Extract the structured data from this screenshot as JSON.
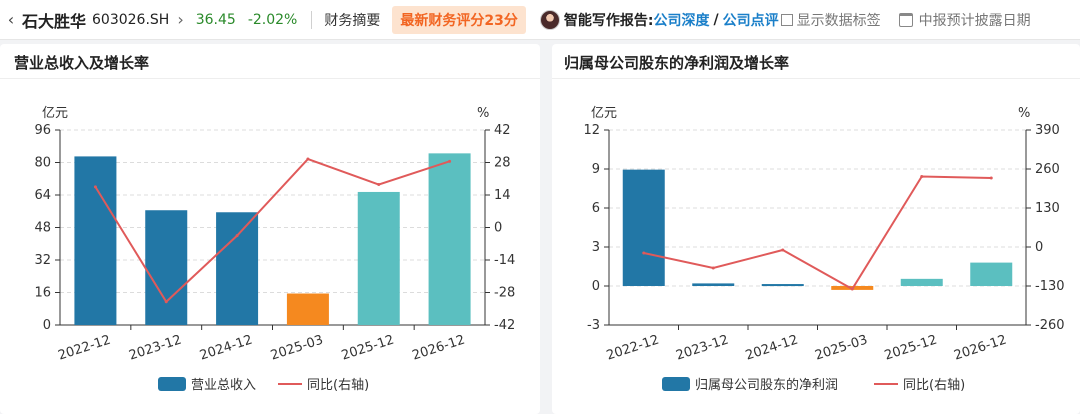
{
  "header": {
    "stock_name": "石大胜华",
    "stock_code": "603026.SH",
    "price": "36.45",
    "change_pct": "-2.02%",
    "tab_summary": "财务摘要",
    "score_badge": "最新财务评分23分",
    "report_label": "智能写作报告:",
    "report_link_1": "公司深度",
    "report_sep": "/",
    "report_link_2": "公司点评",
    "show_data_labels": "显示数据标签",
    "calendar_label": "中报预计披露日期",
    "price_color": "#2a8a2a",
    "badge_color": "#f26522",
    "link_color": "#1a7fc9"
  },
  "charts": {
    "revenue_title": "营业总收入及增长率",
    "profit_title": "归属母公司股东的净利润及增长率"
  },
  "chart_data": [
    {
      "type": "bar",
      "title": "营业总收入及增长率",
      "categories": [
        "2022-12",
        "2023-12",
        "2024-12",
        "2025-03",
        "2025-12",
        "2026-12"
      ],
      "y_unit": "亿元",
      "y2_unit": "%",
      "ylim": [
        0,
        96
      ],
      "yticks": [
        0,
        16,
        32,
        48,
        64,
        80,
        96
      ],
      "y2lim": [
        -42,
        42
      ],
      "y2ticks": [
        -42,
        -28,
        -14,
        0,
        14,
        28,
        42
      ],
      "bar_colors": [
        "#2277a6",
        "#2277a6",
        "#2277a6",
        "#f5891f",
        "#5bbfc0",
        "#5bbfc0"
      ],
      "line_color": "#e05a5a",
      "grid": true,
      "legend_position": "bottom",
      "series": [
        {
          "name": "营业总收入",
          "kind": "bar",
          "axis": "left",
          "values": [
            83.0,
            56.5,
            55.5,
            15.5,
            65.5,
            84.5
          ]
        },
        {
          "name": "同比(右轴)",
          "kind": "line",
          "axis": "right",
          "values": [
            17.5,
            -32.0,
            -3.5,
            29.5,
            18.5,
            28.5
          ]
        }
      ]
    },
    {
      "type": "bar",
      "title": "归属母公司股东的净利润及增长率",
      "categories": [
        "2022-12",
        "2023-12",
        "2024-12",
        "2025-03",
        "2025-12",
        "2026-12"
      ],
      "y_unit": "亿元",
      "y2_unit": "%",
      "ylim": [
        -3,
        12
      ],
      "yticks": [
        -3,
        0,
        3,
        6,
        9,
        12
      ],
      "y2lim": [
        -260,
        390
      ],
      "y2ticks": [
        -260,
        -130,
        0,
        130,
        260,
        390
      ],
      "bar_colors": [
        "#2277a6",
        "#2277a6",
        "#2277a6",
        "#f5891f",
        "#5bbfc0",
        "#5bbfc0"
      ],
      "line_color": "#e05a5a",
      "grid": true,
      "legend_position": "bottom",
      "series": [
        {
          "name": "归属母公司股东的净利润",
          "kind": "bar",
          "axis": "left",
          "values": [
            8.95,
            0.2,
            0.15,
            -0.3,
            0.55,
            1.8
          ]
        },
        {
          "name": "同比(右轴)",
          "kind": "line",
          "axis": "right",
          "values": [
            -20,
            -70,
            -10,
            -140,
            235,
            230
          ]
        }
      ]
    }
  ]
}
